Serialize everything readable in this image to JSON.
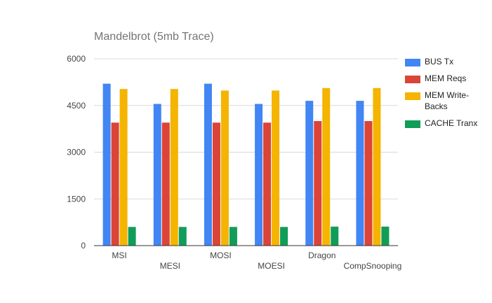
{
  "chart_data": {
    "type": "bar",
    "title": "Mandelbrot (5mb Trace)",
    "xlabel": "",
    "ylabel": "",
    "categories": [
      "MSI",
      "MESI",
      "MOSI",
      "MOESI",
      "Dragon",
      "CompSnooping"
    ],
    "series": [
      {
        "name": "BUS Tx",
        "color": "#4285F4",
        "values": [
          5200,
          4550,
          5200,
          4550,
          4650,
          4650
        ]
      },
      {
        "name": "MEM Reqs",
        "color": "#DB4437",
        "values": [
          3950,
          3950,
          3950,
          3950,
          4000,
          4000
        ]
      },
      {
        "name": "MEM Write-Backs",
        "color": "#F4B400",
        "values": [
          5030,
          5030,
          4980,
          4980,
          5060,
          5060
        ]
      },
      {
        "name": "CACHE Tranx",
        "color": "#0F9D58",
        "values": [
          600,
          600,
          600,
          600,
          610,
          610
        ]
      }
    ],
    "yticks": [
      0,
      1500,
      3000,
      4500,
      6000
    ],
    "ylim": [
      0,
      6000
    ],
    "grid": true,
    "legend_position": "right"
  }
}
